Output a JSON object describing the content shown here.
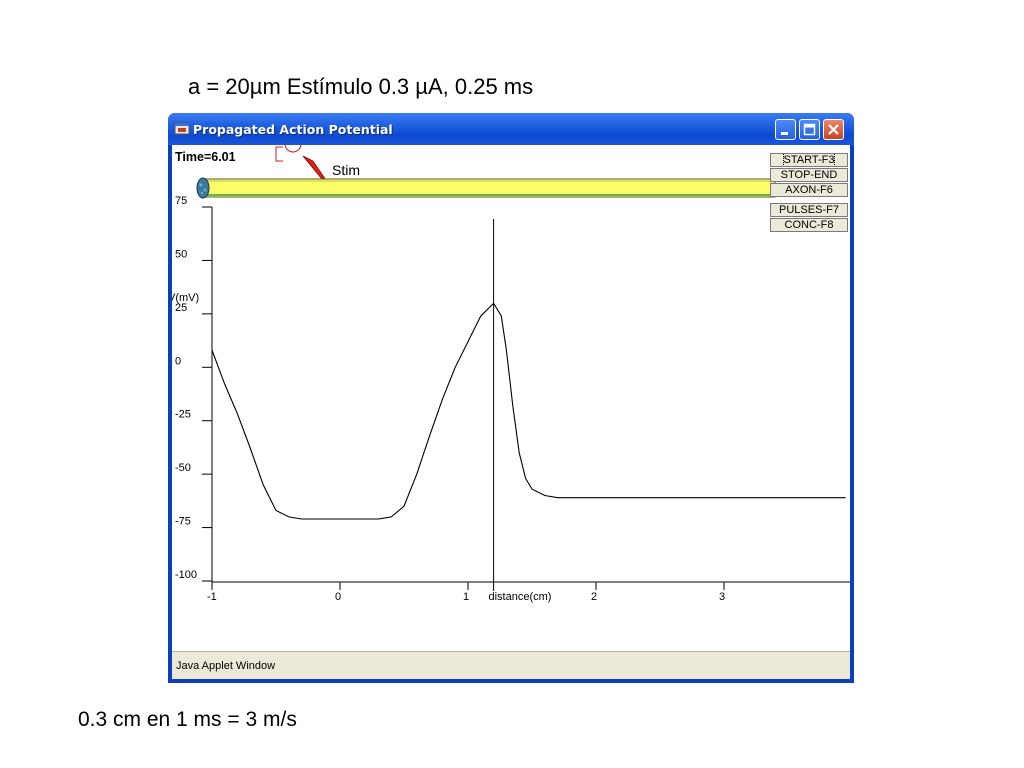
{
  "slide": {
    "title": "a = 20µm  Estímulo 0.3 µA, 0.25  ms",
    "note": "0.3 cm en 1 ms = 3 m/s"
  },
  "window": {
    "title": "Propagated Action Potential",
    "status": "Java Applet Window",
    "accent_color": "#0a3fbf",
    "icons": [
      "applet-icon",
      "minimize-icon",
      "maximize-icon",
      "close-icon"
    ]
  },
  "applet": {
    "time_label": "Time=6.01",
    "stim_label": "Stim",
    "buttons": [
      {
        "label": "START-F3"
      },
      {
        "label": "STOP-END"
      },
      {
        "label": "AXON-F6"
      },
      {
        "label": "PULSES-F7"
      },
      {
        "label": "CONC-F8"
      }
    ]
  },
  "chart_data": {
    "type": "line",
    "title": "",
    "xlabel": "distance(cm)",
    "ylabel": "V(mV)",
    "xlim": [
      -1,
      4
    ],
    "ylim": [
      -100,
      75
    ],
    "x_ticks": [
      "-1",
      "0",
      "1",
      "2",
      "3"
    ],
    "y_ticks": [
      "75",
      "50",
      "25",
      "0",
      "-25",
      "-50",
      "-75",
      "-100"
    ],
    "cursor_x": 1.2,
    "series": [
      {
        "color": "#000000",
        "x": [
          -1.0,
          -0.9,
          -0.8,
          -0.7,
          -0.6,
          -0.5,
          -0.4,
          -0.3,
          -0.2,
          0.0,
          0.2,
          0.3,
          0.4,
          0.5,
          0.6,
          0.7,
          0.8,
          0.9,
          1.0,
          1.1,
          1.2,
          1.26,
          1.3,
          1.35,
          1.4,
          1.45,
          1.5,
          1.6,
          1.7,
          1.8,
          2.0,
          3.0,
          3.95
        ],
        "y": [
          8,
          -8,
          -22,
          -38,
          -55,
          -67,
          -70,
          -71,
          -71,
          -71,
          -71,
          -71,
          -70,
          -65,
          -50,
          -32,
          -15,
          0,
          12,
          24,
          30,
          24,
          8,
          -18,
          -40,
          -52,
          -57,
          -60,
          -61,
          -61,
          -61,
          -61,
          -61
        ]
      }
    ],
    "grid": false,
    "legend": "none"
  }
}
